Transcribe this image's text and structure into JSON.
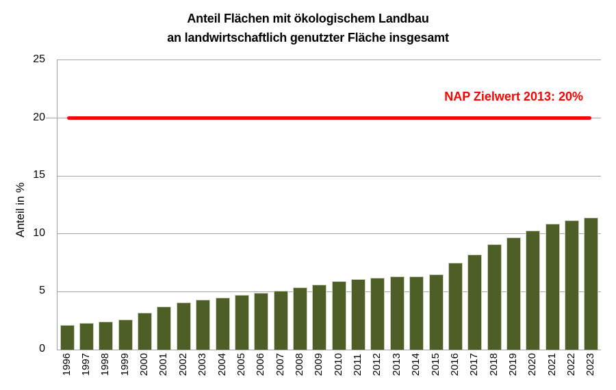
{
  "chart_data": {
    "type": "bar",
    "title": "Anteil Flächen mit ökologischem Landbau an landwirtschaftlich genutzter Fläche insgesamt",
    "title_lines": [
      "Anteil Flächen mit ökologischem Landbau",
      "an landwirtschaftlich genutzter Fläche insgesamt"
    ],
    "xlabel": "",
    "ylabel": "Anteil in %",
    "ylim": [
      0,
      25
    ],
    "yticks": [
      0,
      5,
      10,
      15,
      20,
      25
    ],
    "grid": true,
    "legend": "none",
    "categories": [
      "1996",
      "1997",
      "1998",
      "1999",
      "2000",
      "2001",
      "2002",
      "2003",
      "2004",
      "2005",
      "2006",
      "2007",
      "2008",
      "2009",
      "2010",
      "2011",
      "2012",
      "2013",
      "2014",
      "2015",
      "2016",
      "2017",
      "2018",
      "2019",
      "2020",
      "2021",
      "2022",
      "2023"
    ],
    "values": [
      2.1,
      2.3,
      2.4,
      2.6,
      3.2,
      3.7,
      4.1,
      4.3,
      4.5,
      4.7,
      4.9,
      5.1,
      5.4,
      5.6,
      5.9,
      6.1,
      6.2,
      6.3,
      6.3,
      6.5,
      7.5,
      8.2,
      9.1,
      9.7,
      10.3,
      10.9,
      11.2,
      11.4
    ],
    "target_line": {
      "label": "NAP Zielwert 2013: 20%",
      "value": 20,
      "color": "#fe0000"
    },
    "colors": {
      "bar": "#4d5e27",
      "bar_border": "#cad0bd",
      "gridline": "#a6a6a6",
      "axis": "#9e9e9e",
      "text": "#000000"
    }
  }
}
